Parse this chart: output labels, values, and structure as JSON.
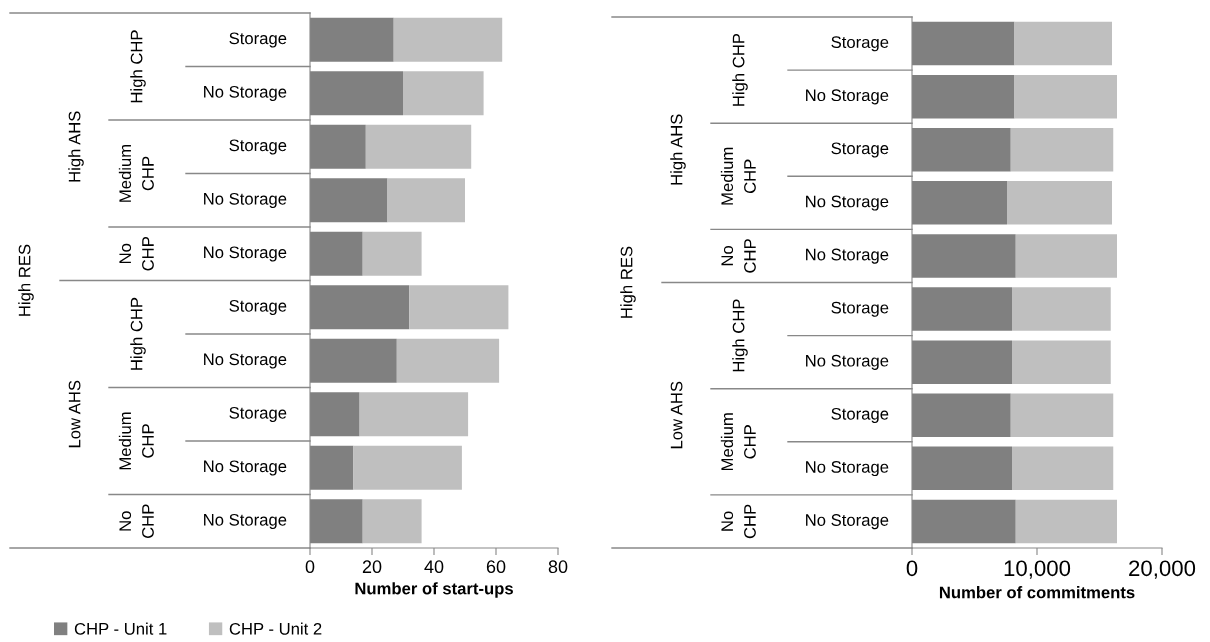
{
  "chart_data": [
    {
      "type": "bar",
      "orientation": "horizontal",
      "stacked": true,
      "xlabel": "Number of start-ups",
      "categories": [
        "Storage",
        "No Storage",
        "Storage",
        "No Storage",
        "No Storage",
        "Storage",
        "No Storage",
        "Storage",
        "No Storage",
        "No Storage"
      ],
      "series": [
        {
          "name": "CHP - Unit 1",
          "color": "#808080",
          "values": [
            27,
            30,
            18,
            25,
            17,
            32,
            28,
            16,
            14,
            17
          ]
        },
        {
          "name": "CHP - Unit 2",
          "color": "#bfbfbf",
          "values": [
            35,
            26,
            34,
            25,
            19,
            32,
            33,
            35,
            35,
            19
          ]
        }
      ],
      "xlim": [
        0,
        80
      ],
      "xticks": [
        0,
        20,
        40,
        60,
        80
      ],
      "grid": false,
      "legend": "bottom",
      "annotations": [
        "High RES",
        "High AHS",
        "Low AHS",
        "High CHP",
        "Medium\nCHP",
        "No\nCHP",
        "High CHP",
        "Medium\nCHP",
        "No\nCHP"
      ]
    },
    {
      "type": "bar",
      "orientation": "horizontal",
      "stacked": true,
      "xlabel": "Number of commitments",
      "categories": [
        "Storage",
        "No Storage",
        "Storage",
        "No Storage",
        "No Storage",
        "Storage",
        "No Storage",
        "Storage",
        "No Storage",
        "No Storage"
      ],
      "series": [
        {
          "color": "#808080",
          "values": [
            8200,
            8200,
            7900,
            7600,
            8300,
            8000,
            8000,
            7900,
            8000,
            8300
          ]
        },
        {
          "color": "#bfbfbf",
          "values": [
            7800,
            8200,
            8200,
            8400,
            8100,
            7900,
            7900,
            8200,
            8100,
            8100
          ]
        }
      ],
      "xlim": [
        0,
        20000
      ],
      "xticks": [
        {
          "value": 0,
          "label": "0"
        },
        {
          "value": 10000,
          "label": "10,000"
        },
        {
          "value": 20000,
          "label": "20,000"
        }
      ],
      "grid": false,
      "annotations": [
        "High RES",
        "High AHS",
        "Low AHS",
        "High CHP",
        "Medium\nCHP",
        "No\nCHP",
        "High CHP",
        "Medium\nCHP",
        "No\nCHP"
      ]
    }
  ]
}
